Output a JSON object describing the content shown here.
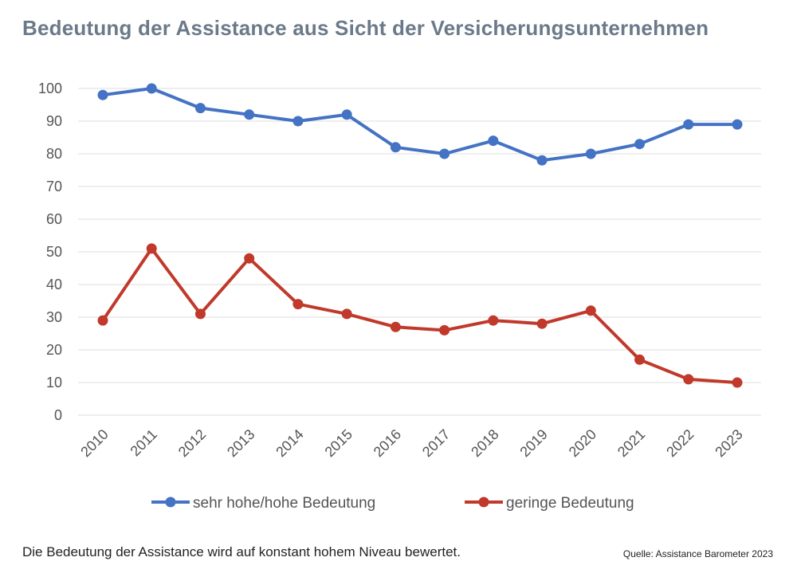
{
  "header": {
    "title": "Bedeutung der Assistance aus Sicht der Versicherungsunternehmen"
  },
  "footer": {
    "caption": "Die Bedeutung der Assistance wird auf konstant hohem Niveau bewertet.",
    "source": "Quelle: Assistance Barometer 2023"
  },
  "chart_data": {
    "type": "line",
    "title": "Bedeutung der Assistance aus Sicht der Versicherungsunternehmen",
    "xlabel": "",
    "ylabel": "",
    "x": [
      "2010",
      "2011",
      "2012",
      "2013",
      "2014",
      "2015",
      "2016",
      "2017",
      "2018",
      "2019",
      "2020",
      "2021",
      "2022",
      "2023"
    ],
    "ylim": [
      0,
      100
    ],
    "yticks": [
      0,
      10,
      20,
      30,
      40,
      50,
      60,
      70,
      80,
      90,
      100
    ],
    "grid": true,
    "legend": "bottom",
    "series": [
      {
        "name": "sehr hohe/hohe Bedeutung",
        "color": "#4472c4",
        "values": [
          98,
          100,
          94,
          92,
          90,
          92,
          82,
          80,
          84,
          78,
          80,
          83,
          89,
          89
        ]
      },
      {
        "name": "geringe Bedeutung",
        "color": "#c0392b",
        "values": [
          29,
          51,
          31,
          48,
          34,
          31,
          27,
          26,
          29,
          28,
          32,
          17,
          11,
          10
        ]
      }
    ]
  }
}
